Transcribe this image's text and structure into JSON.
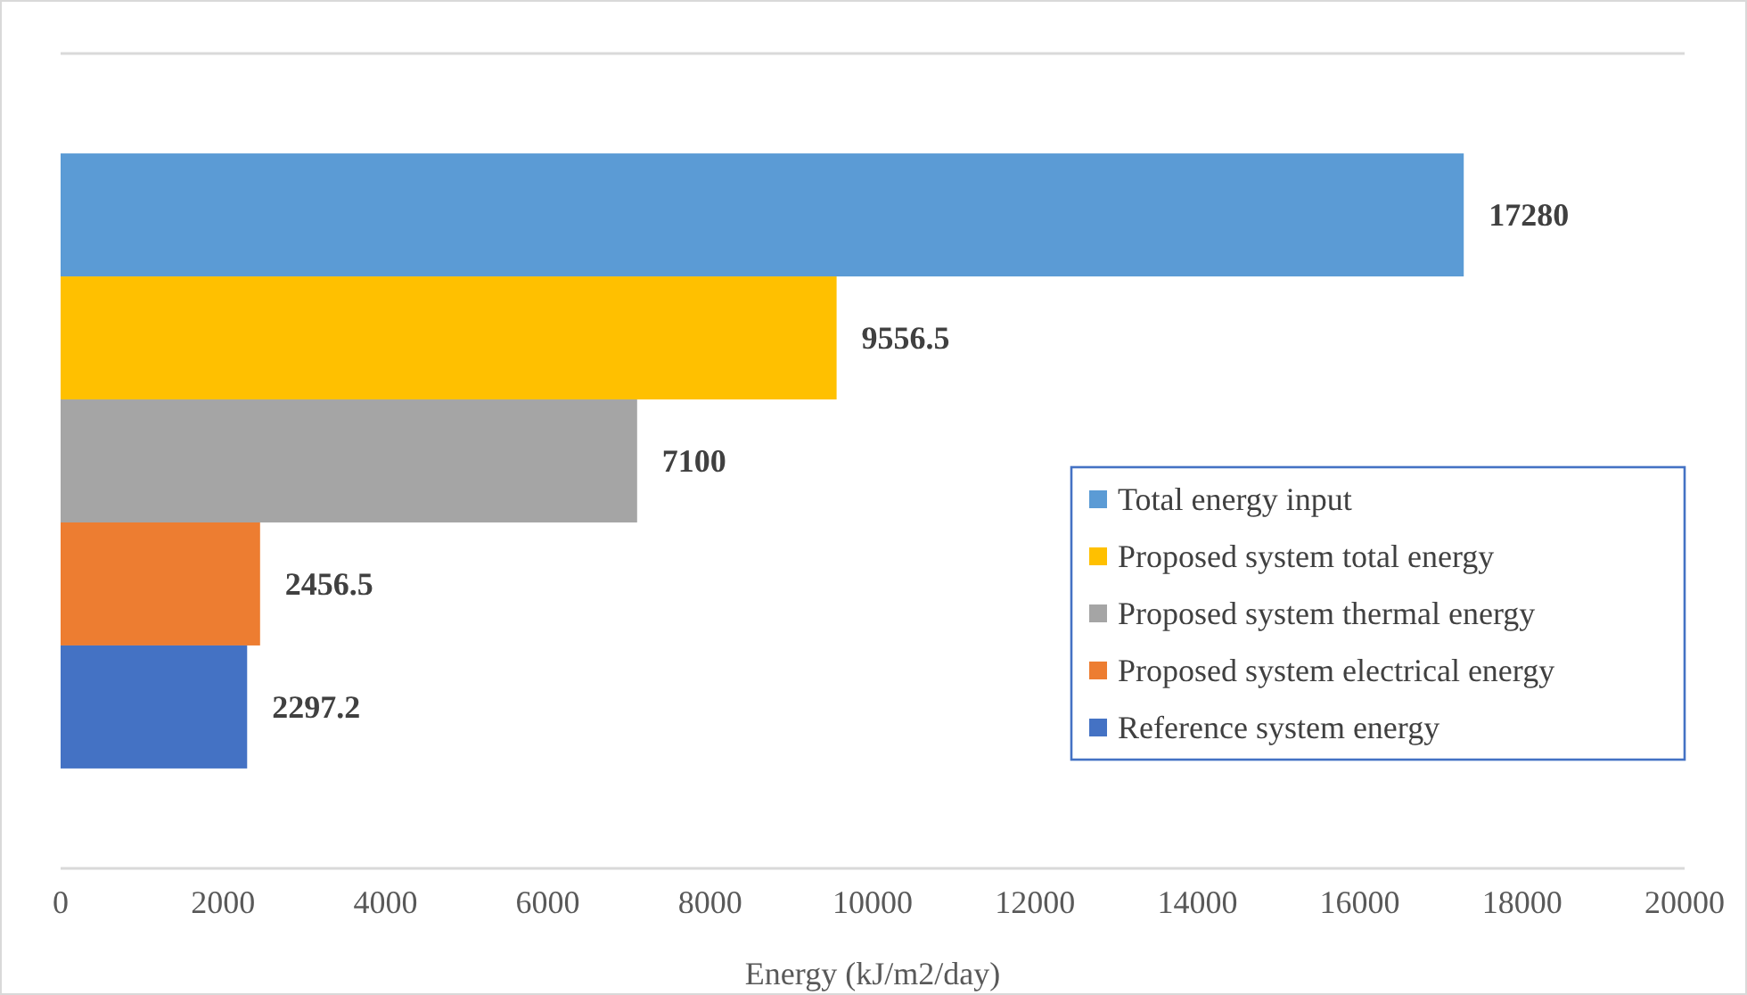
{
  "chart_data": {
    "type": "bar",
    "orientation": "horizontal",
    "categories": [
      null
    ],
    "series": [
      {
        "name": "Total energy input",
        "color": "#5b9bd5",
        "values": [
          17280
        ]
      },
      {
        "name": "Proposed system total energy",
        "color": "#ffc000",
        "values": [
          9556.5
        ]
      },
      {
        "name": "Proposed system thermal energy",
        "color": "#a5a5a5",
        "values": [
          7100
        ]
      },
      {
        "name": "Proposed system electrical energy",
        "color": "#ed7d31",
        "values": [
          2456.5
        ]
      },
      {
        "name": "Reference system energy",
        "color": "#4472c4",
        "values": [
          2297.2
        ]
      }
    ],
    "xlim": [
      0,
      20000
    ],
    "xticks": [
      0,
      2000,
      4000,
      6000,
      8000,
      10000,
      12000,
      14000,
      16000,
      18000,
      20000
    ],
    "xlabel": "Energy (kJ/m2/day)",
    "data_labels": true,
    "legend": "right"
  }
}
